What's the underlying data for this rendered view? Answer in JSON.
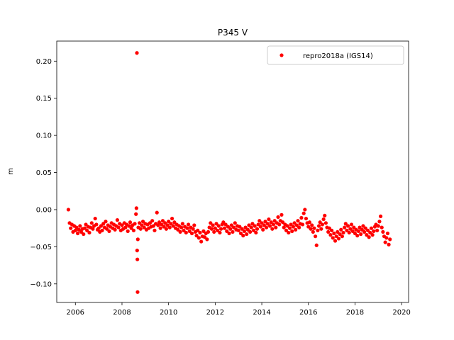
{
  "chart_data": {
    "type": "scatter",
    "title": "P345 V",
    "xlabel": "",
    "ylabel": "m",
    "xlim": [
      2005.2,
      2020.3
    ],
    "ylim": [
      -0.125,
      0.227
    ],
    "xticks": [
      2006,
      2008,
      2010,
      2012,
      2014,
      2016,
      2018,
      2020
    ],
    "yticks": [
      -0.1,
      -0.05,
      0.0,
      0.05,
      0.1,
      0.15,
      0.2
    ],
    "ytick_labels": [
      "−0.10",
      "−0.05",
      "0.00",
      "0.05",
      "0.10",
      "0.15",
      "0.20"
    ],
    "grid": false,
    "legend_position": "top-right",
    "series": [
      {
        "name": "repro2018a (IGS14)",
        "color": "#ff0000",
        "marker": "circle",
        "data": [
          [
            2005.7,
            0.0
          ],
          [
            2005.75,
            -0.018
          ],
          [
            2005.8,
            -0.025
          ],
          [
            2005.85,
            -0.02
          ],
          [
            2005.9,
            -0.03
          ],
          [
            2005.95,
            -0.022
          ],
          [
            2006.0,
            -0.028
          ],
          [
            2006.05,
            -0.024
          ],
          [
            2006.1,
            -0.032
          ],
          [
            2006.15,
            -0.027
          ],
          [
            2006.2,
            -0.022
          ],
          [
            2006.25,
            -0.03
          ],
          [
            2006.3,
            -0.026
          ],
          [
            2006.35,
            -0.033
          ],
          [
            2006.4,
            -0.025
          ],
          [
            2006.45,
            -0.02
          ],
          [
            2006.5,
            -0.028
          ],
          [
            2006.55,
            -0.023
          ],
          [
            2006.6,
            -0.031
          ],
          [
            2006.65,
            -0.024
          ],
          [
            2006.7,
            -0.018
          ],
          [
            2006.75,
            -0.026
          ],
          [
            2006.8,
            -0.022
          ],
          [
            2006.85,
            -0.012
          ],
          [
            2006.9,
            -0.02
          ],
          [
            2006.95,
            -0.027
          ],
          [
            2007.0,
            -0.025
          ],
          [
            2007.05,
            -0.03
          ],
          [
            2007.1,
            -0.022
          ],
          [
            2007.15,
            -0.028
          ],
          [
            2007.2,
            -0.019
          ],
          [
            2007.25,
            -0.024
          ],
          [
            2007.3,
            -0.016
          ],
          [
            2007.35,
            -0.026
          ],
          [
            2007.4,
            -0.021
          ],
          [
            2007.45,
            -0.029
          ],
          [
            2007.5,
            -0.023
          ],
          [
            2007.55,
            -0.018
          ],
          [
            2007.6,
            -0.025
          ],
          [
            2007.65,
            -0.02
          ],
          [
            2007.7,
            -0.027
          ],
          [
            2007.75,
            -0.022
          ],
          [
            2007.8,
            -0.014
          ],
          [
            2007.85,
            -0.024
          ],
          [
            2007.9,
            -0.019
          ],
          [
            2007.95,
            -0.028
          ],
          [
            2008.0,
            -0.021
          ],
          [
            2008.05,
            -0.026
          ],
          [
            2008.1,
            -0.018
          ],
          [
            2008.15,
            -0.024
          ],
          [
            2008.2,
            -0.02
          ],
          [
            2008.25,
            -0.029
          ],
          [
            2008.3,
            -0.022
          ],
          [
            2008.35,
            -0.017
          ],
          [
            2008.4,
            -0.025
          ],
          [
            2008.45,
            -0.021
          ],
          [
            2008.5,
            -0.028
          ],
          [
            2008.55,
            -0.019
          ],
          [
            2008.6,
            -0.006
          ],
          [
            2008.62,
            0.002
          ],
          [
            2008.64,
            0.211
          ],
          [
            2008.65,
            -0.055
          ],
          [
            2008.66,
            -0.067
          ],
          [
            2008.67,
            -0.111
          ],
          [
            2008.68,
            -0.04
          ],
          [
            2008.7,
            -0.024
          ],
          [
            2008.75,
            -0.018
          ],
          [
            2008.8,
            -0.026
          ],
          [
            2008.85,
            -0.021
          ],
          [
            2008.9,
            -0.016
          ],
          [
            2008.95,
            -0.024
          ],
          [
            2009.0,
            -0.019
          ],
          [
            2009.05,
            -0.027
          ],
          [
            2009.1,
            -0.02
          ],
          [
            2009.15,
            -0.025
          ],
          [
            2009.2,
            -0.018
          ],
          [
            2009.25,
            -0.023
          ],
          [
            2009.3,
            -0.015
          ],
          [
            2009.35,
            -0.022
          ],
          [
            2009.4,
            -0.028
          ],
          [
            2009.45,
            -0.019
          ],
          [
            2009.5,
            -0.004
          ],
          [
            2009.55,
            -0.021
          ],
          [
            2009.6,
            -0.017
          ],
          [
            2009.65,
            -0.025
          ],
          [
            2009.7,
            -0.02
          ],
          [
            2009.75,
            -0.015
          ],
          [
            2009.8,
            -0.023
          ],
          [
            2009.85,
            -0.018
          ],
          [
            2009.9,
            -0.026
          ],
          [
            2009.95,
            -0.021
          ],
          [
            2010.0,
            -0.016
          ],
          [
            2010.05,
            -0.024
          ],
          [
            2010.1,
            -0.019
          ],
          [
            2010.15,
            -0.012
          ],
          [
            2010.2,
            -0.022
          ],
          [
            2010.25,
            -0.017
          ],
          [
            2010.3,
            -0.025
          ],
          [
            2010.35,
            -0.02
          ],
          [
            2010.4,
            -0.027
          ],
          [
            2010.45,
            -0.022
          ],
          [
            2010.5,
            -0.03
          ],
          [
            2010.55,
            -0.024
          ],
          [
            2010.6,
            -0.019
          ],
          [
            2010.65,
            -0.028
          ],
          [
            2010.7,
            -0.023
          ],
          [
            2010.75,
            -0.031
          ],
          [
            2010.8,
            -0.025
          ],
          [
            2010.85,
            -0.02
          ],
          [
            2010.9,
            -0.029
          ],
          [
            2010.95,
            -0.024
          ],
          [
            2011.0,
            -0.032
          ],
          [
            2011.05,
            -0.026
          ],
          [
            2011.1,
            -0.021
          ],
          [
            2011.15,
            -0.03
          ],
          [
            2011.2,
            -0.035
          ],
          [
            2011.25,
            -0.028
          ],
          [
            2011.3,
            -0.038
          ],
          [
            2011.35,
            -0.031
          ],
          [
            2011.4,
            -0.043
          ],
          [
            2011.45,
            -0.036
          ],
          [
            2011.5,
            -0.029
          ],
          [
            2011.55,
            -0.037
          ],
          [
            2011.6,
            -0.032
          ],
          [
            2011.65,
            -0.04
          ],
          [
            2011.7,
            -0.03
          ],
          [
            2011.75,
            -0.024
          ],
          [
            2011.8,
            -0.018
          ],
          [
            2011.85,
            -0.026
          ],
          [
            2011.9,
            -0.021
          ],
          [
            2011.95,
            -0.03
          ],
          [
            2012.0,
            -0.025
          ],
          [
            2012.05,
            -0.019
          ],
          [
            2012.1,
            -0.028
          ],
          [
            2012.15,
            -0.022
          ],
          [
            2012.2,
            -0.031
          ],
          [
            2012.25,
            -0.026
          ],
          [
            2012.3,
            -0.02
          ],
          [
            2012.35,
            -0.017
          ],
          [
            2012.4,
            -0.025
          ],
          [
            2012.45,
            -0.02
          ],
          [
            2012.5,
            -0.029
          ],
          [
            2012.55,
            -0.023
          ],
          [
            2012.6,
            -0.032
          ],
          [
            2012.65,
            -0.026
          ],
          [
            2012.7,
            -0.021
          ],
          [
            2012.75,
            -0.03
          ],
          [
            2012.8,
            -0.024
          ],
          [
            2012.85,
            -0.018
          ],
          [
            2012.9,
            -0.027
          ],
          [
            2012.95,
            -0.022
          ],
          [
            2013.0,
            -0.028
          ],
          [
            2013.05,
            -0.023
          ],
          [
            2013.1,
            -0.032
          ],
          [
            2013.15,
            -0.026
          ],
          [
            2013.2,
            -0.035
          ],
          [
            2013.25,
            -0.029
          ],
          [
            2013.3,
            -0.024
          ],
          [
            2013.35,
            -0.033
          ],
          [
            2013.4,
            -0.027
          ],
          [
            2013.45,
            -0.021
          ],
          [
            2013.5,
            -0.03
          ],
          [
            2013.55,
            -0.024
          ],
          [
            2013.6,
            -0.019
          ],
          [
            2013.65,
            -0.028
          ],
          [
            2013.7,
            -0.022
          ],
          [
            2013.75,
            -0.031
          ],
          [
            2013.8,
            -0.026
          ],
          [
            2013.85,
            -0.02
          ],
          [
            2013.9,
            -0.015
          ],
          [
            2013.95,
            -0.023
          ],
          [
            2014.0,
            -0.018
          ],
          [
            2014.05,
            -0.027
          ],
          [
            2014.1,
            -0.021
          ],
          [
            2014.15,
            -0.016
          ],
          [
            2014.2,
            -0.024
          ],
          [
            2014.25,
            -0.019
          ],
          [
            2014.3,
            -0.013
          ],
          [
            2014.35,
            -0.022
          ],
          [
            2014.4,
            -0.017
          ],
          [
            2014.45,
            -0.026
          ],
          [
            2014.5,
            -0.02
          ],
          [
            2014.55,
            -0.015
          ],
          [
            2014.6,
            -0.024
          ],
          [
            2014.65,
            -0.018
          ],
          [
            2014.7,
            -0.01
          ],
          [
            2014.75,
            -0.02
          ],
          [
            2014.8,
            -0.015
          ],
          [
            2014.85,
            -0.007
          ],
          [
            2014.9,
            -0.017
          ],
          [
            2014.95,
            -0.024
          ],
          [
            2015.0,
            -0.02
          ],
          [
            2015.05,
            -0.028
          ],
          [
            2015.1,
            -0.022
          ],
          [
            2015.15,
            -0.031
          ],
          [
            2015.2,
            -0.025
          ],
          [
            2015.25,
            -0.02
          ],
          [
            2015.3,
            -0.029
          ],
          [
            2015.35,
            -0.023
          ],
          [
            2015.4,
            -0.018
          ],
          [
            2015.45,
            -0.027
          ],
          [
            2015.5,
            -0.021
          ],
          [
            2015.55,
            -0.015
          ],
          [
            2015.6,
            -0.024
          ],
          [
            2015.65,
            -0.019
          ],
          [
            2015.7,
            -0.011
          ],
          [
            2015.75,
            -0.02
          ],
          [
            2015.8,
            -0.005
          ],
          [
            2015.85,
            0.0
          ],
          [
            2015.9,
            -0.012
          ],
          [
            2015.95,
            -0.018
          ],
          [
            2016.0,
            -0.023
          ],
          [
            2016.05,
            -0.017
          ],
          [
            2016.1,
            -0.026
          ],
          [
            2016.15,
            -0.021
          ],
          [
            2016.2,
            -0.03
          ],
          [
            2016.25,
            -0.025
          ],
          [
            2016.3,
            -0.036
          ],
          [
            2016.35,
            -0.048
          ],
          [
            2016.4,
            -0.028
          ],
          [
            2016.45,
            -0.022
          ],
          [
            2016.5,
            -0.017
          ],
          [
            2016.55,
            -0.026
          ],
          [
            2016.6,
            -0.02
          ],
          [
            2016.65,
            -0.013
          ],
          [
            2016.7,
            -0.008
          ],
          [
            2016.75,
            -0.018
          ],
          [
            2016.8,
            -0.024
          ],
          [
            2016.85,
            -0.03
          ],
          [
            2016.9,
            -0.025
          ],
          [
            2016.95,
            -0.034
          ],
          [
            2017.0,
            -0.028
          ],
          [
            2017.05,
            -0.038
          ],
          [
            2017.1,
            -0.032
          ],
          [
            2017.15,
            -0.042
          ],
          [
            2017.2,
            -0.036
          ],
          [
            2017.25,
            -0.03
          ],
          [
            2017.3,
            -0.039
          ],
          [
            2017.35,
            -0.033
          ],
          [
            2017.4,
            -0.027
          ],
          [
            2017.45,
            -0.036
          ],
          [
            2017.5,
            -0.031
          ],
          [
            2017.55,
            -0.024
          ],
          [
            2017.6,
            -0.019
          ],
          [
            2017.65,
            -0.028
          ],
          [
            2017.7,
            -0.022
          ],
          [
            2017.75,
            -0.031
          ],
          [
            2017.8,
            -0.026
          ],
          [
            2017.85,
            -0.02
          ],
          [
            2017.9,
            -0.029
          ],
          [
            2017.95,
            -0.024
          ],
          [
            2018.0,
            -0.032
          ],
          [
            2018.05,
            -0.027
          ],
          [
            2018.1,
            -0.035
          ],
          [
            2018.15,
            -0.029
          ],
          [
            2018.2,
            -0.024
          ],
          [
            2018.25,
            -0.033
          ],
          [
            2018.3,
            -0.027
          ],
          [
            2018.35,
            -0.022
          ],
          [
            2018.4,
            -0.03
          ],
          [
            2018.45,
            -0.025
          ],
          [
            2018.5,
            -0.034
          ],
          [
            2018.55,
            -0.028
          ],
          [
            2018.6,
            -0.037
          ],
          [
            2018.65,
            -0.031
          ],
          [
            2018.7,
            -0.025
          ],
          [
            2018.75,
            -0.034
          ],
          [
            2018.8,
            -0.029
          ],
          [
            2018.85,
            -0.023
          ],
          [
            2018.9,
            -0.02
          ],
          [
            2018.95,
            -0.028
          ],
          [
            2019.0,
            -0.022
          ],
          [
            2019.05,
            -0.016
          ],
          [
            2019.1,
            -0.009
          ],
          [
            2019.15,
            -0.024
          ],
          [
            2019.2,
            -0.03
          ],
          [
            2019.25,
            -0.036
          ],
          [
            2019.3,
            -0.044
          ],
          [
            2019.35,
            -0.038
          ],
          [
            2019.4,
            -0.032
          ],
          [
            2019.45,
            -0.047
          ],
          [
            2019.5,
            -0.04
          ]
        ]
      }
    ]
  }
}
